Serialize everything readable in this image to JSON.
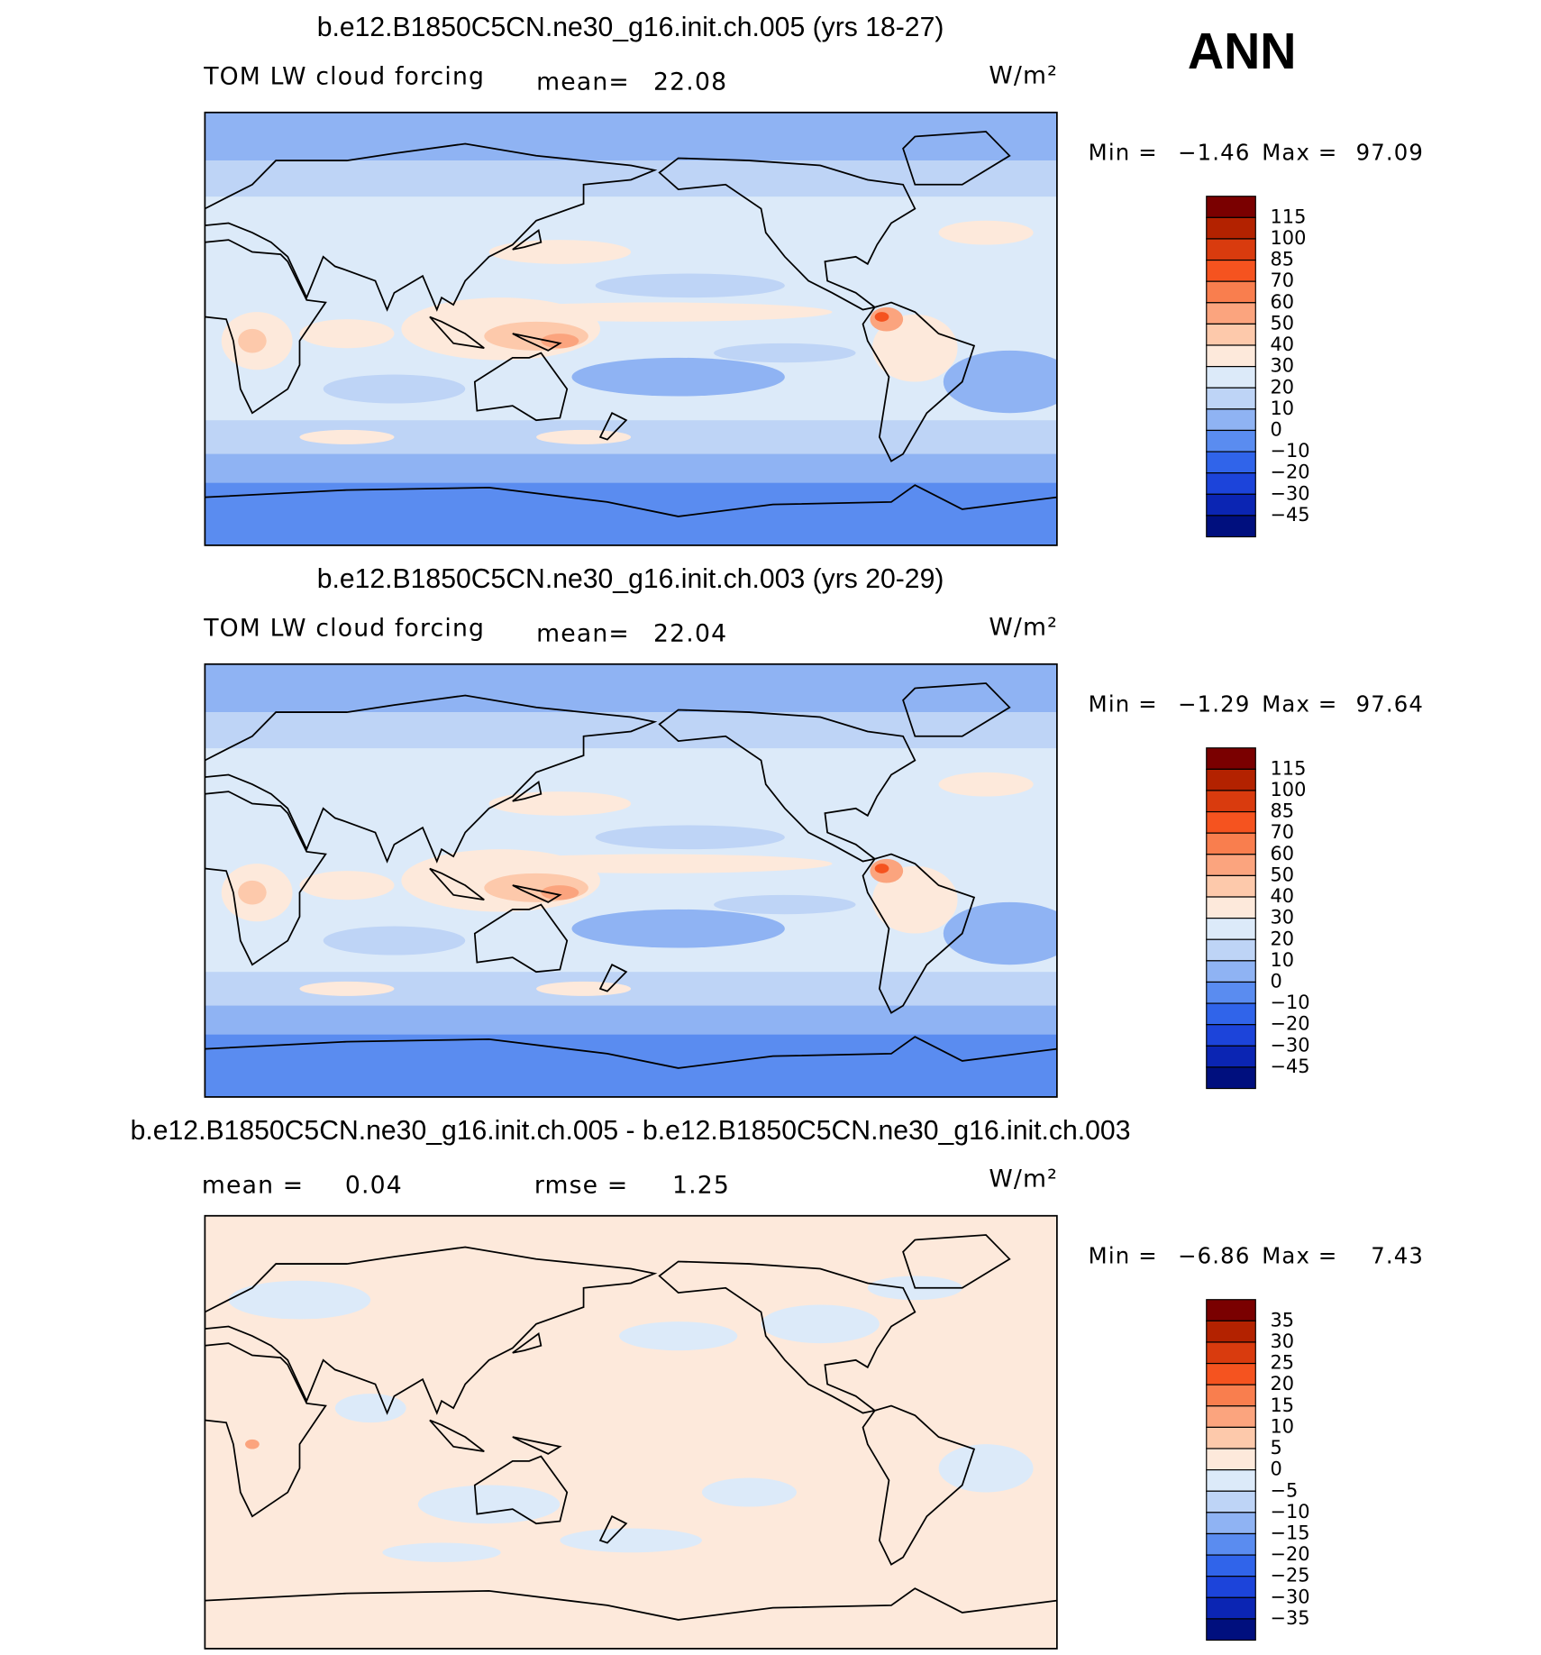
{
  "title": "ANN",
  "panels": [
    {
      "title": "b.e12.B1850C5CN.ne30_g16.init.ch.005 (yrs 18-27)",
      "variable": "TOM LW cloud forcing",
      "stats": [
        {
          "label": "mean=",
          "value": "22.08"
        }
      ],
      "units": "W/m²",
      "min_label": "Min =",
      "min_value": "−1.46",
      "max_label": "Max =",
      "max_value": "97.09",
      "colorbar_labels": [
        "115",
        "100",
        "85",
        "70",
        "60",
        "50",
        "40",
        "30",
        "20",
        "10",
        "0",
        "−10",
        "−20",
        "−30",
        "−45"
      ],
      "colorbar_colors": [
        "#7a0000",
        "#b32200",
        "#d93b0e",
        "#f5531f",
        "#f97e4e",
        "#fba47e",
        "#fdc9ab",
        "#fde9db",
        "#dceaf9",
        "#bed4f6",
        "#8fb3f3",
        "#5a8cf0",
        "#3064ea",
        "#1c44da",
        "#0b25b3",
        "#000f7e"
      ]
    },
    {
      "title": "b.e12.B1850C5CN.ne30_g16.init.ch.003 (yrs 20-29)",
      "variable": "TOM LW cloud forcing",
      "stats": [
        {
          "label": "mean=",
          "value": "22.04"
        }
      ],
      "units": "W/m²",
      "min_label": "Min =",
      "min_value": "−1.29",
      "max_label": "Max =",
      "max_value": "97.64",
      "colorbar_labels": [
        "115",
        "100",
        "85",
        "70",
        "60",
        "50",
        "40",
        "30",
        "20",
        "10",
        "0",
        "−10",
        "−20",
        "−30",
        "−45"
      ],
      "colorbar_colors": [
        "#7a0000",
        "#b32200",
        "#d93b0e",
        "#f5531f",
        "#f97e4e",
        "#fba47e",
        "#fdc9ab",
        "#fde9db",
        "#dceaf9",
        "#bed4f6",
        "#8fb3f3",
        "#5a8cf0",
        "#3064ea",
        "#1c44da",
        "#0b25b3",
        "#000f7e"
      ]
    },
    {
      "title": "b.e12.B1850C5CN.ne30_g16.init.ch.005 - b.e12.B1850C5CN.ne30_g16.init.ch.003",
      "stats": [
        {
          "label": "mean =",
          "value": "0.04"
        },
        {
          "label": "rmse =",
          "value": "1.25"
        }
      ],
      "units": "W/m²",
      "min_label": "Min =",
      "min_value": "−6.86",
      "max_label": "Max =",
      "max_value": "7.43",
      "colorbar_labels": [
        "35",
        "30",
        "25",
        "20",
        "15",
        "10",
        "5",
        "0",
        "−5",
        "−10",
        "−15",
        "−20",
        "−25",
        "−30",
        "−35"
      ],
      "colorbar_colors": [
        "#7a0000",
        "#b32200",
        "#d93b0e",
        "#f5531f",
        "#f97e4e",
        "#fba47e",
        "#fdc9ab",
        "#fde9db",
        "#dceaf9",
        "#bed4f6",
        "#8fb3f3",
        "#5a8cf0",
        "#3064ea",
        "#1c44da",
        "#0b25b3",
        "#000f7e"
      ]
    }
  ]
}
